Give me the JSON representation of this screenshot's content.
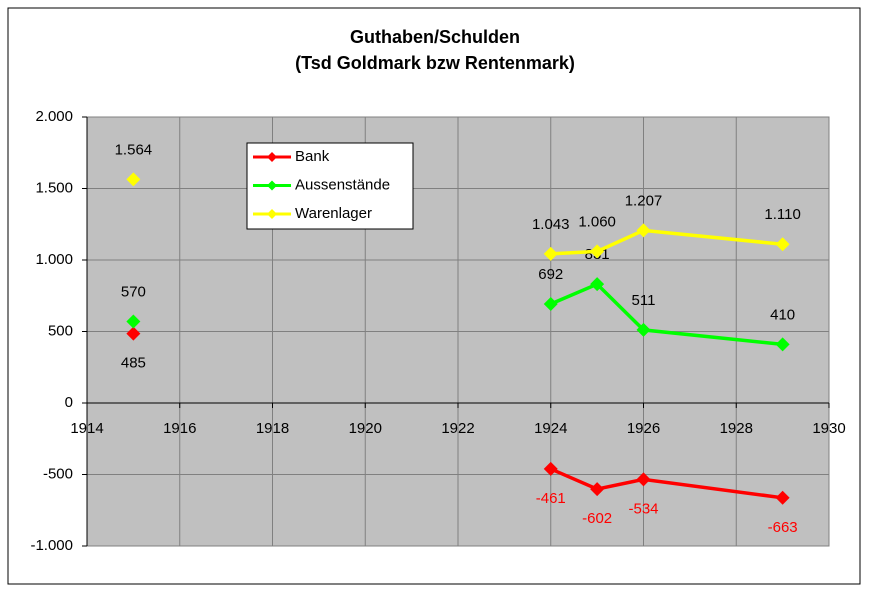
{
  "chart_data": {
    "type": "line",
    "title": "Guthaben/Schulden",
    "subtitle": "(Tsd Goldmark bzw Rentenmark)",
    "x": [
      1915,
      null,
      1924,
      1925,
      1926,
      1929
    ],
    "series": [
      {
        "name": "Bank",
        "color": "#ff0000",
        "values": [
          485,
          null,
          -461,
          -602,
          -534,
          -663
        ],
        "value_labels": [
          "485",
          null,
          "-461",
          "-602",
          "-534",
          "-663"
        ],
        "label_position": "below"
      },
      {
        "name": "Aussenstände",
        "color": "#00ff00",
        "values": [
          570,
          null,
          692,
          831,
          511,
          410
        ],
        "label_position": "above"
      },
      {
        "name": "Warenlager",
        "color": "#ffff00",
        "values": [
          1564,
          null,
          1043,
          1060,
          1207,
          1110
        ],
        "value_labels": [
          "1.564",
          null,
          "1.043",
          "1.060",
          "1.207",
          "1.110"
        ],
        "label_position": "above"
      }
    ],
    "negative_label_color": "#ff0000",
    "xlim": [
      1914,
      1930
    ],
    "xticks": [
      1914,
      1916,
      1918,
      1920,
      1922,
      1924,
      1926,
      1928,
      1930
    ],
    "ylim": [
      -1000,
      2000
    ],
    "yticks": [
      {
        "value": -1000,
        "label": "-1.000"
      },
      -500,
      0,
      500,
      {
        "value": 1000,
        "label": "1.000"
      },
      {
        "value": 1500,
        "label": "1.500"
      },
      {
        "value": 2000,
        "label": "2.000"
      }
    ],
    "grid": true,
    "plot_background": "#c0c0c0",
    "legend": "upper-left"
  }
}
